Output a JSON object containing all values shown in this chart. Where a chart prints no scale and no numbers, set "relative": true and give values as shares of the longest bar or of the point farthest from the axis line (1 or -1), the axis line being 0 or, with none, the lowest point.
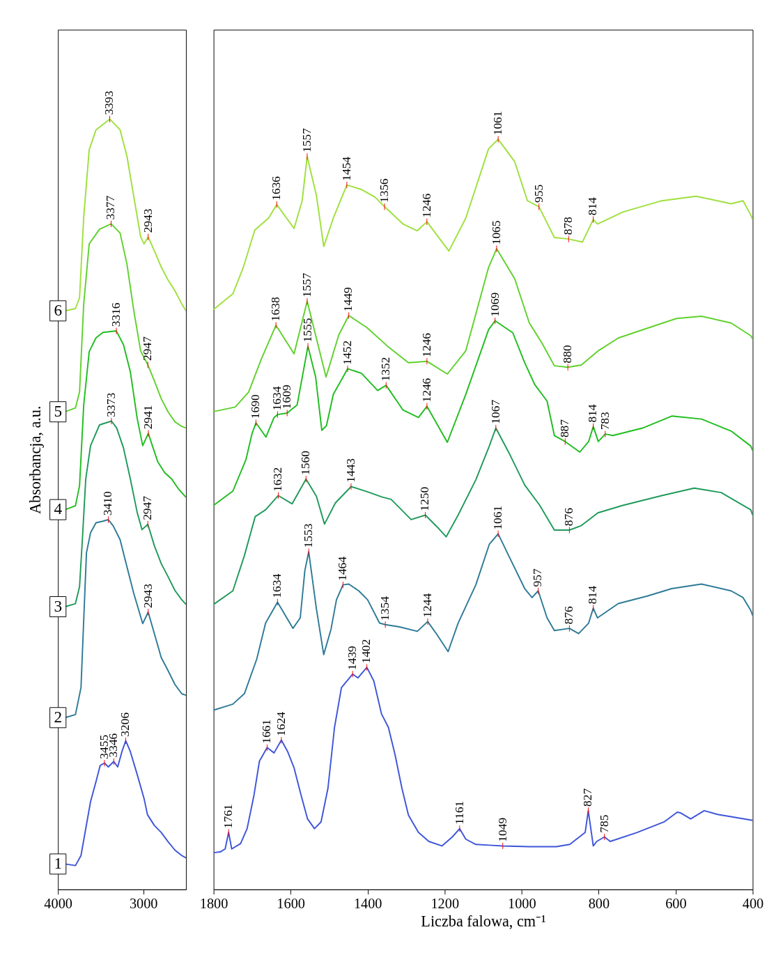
{
  "chart_data": [
    {
      "type": "line",
      "ylabel": "Absorbancja, a.u.",
      "relative": true,
      "xlim": [
        4000,
        2500
      ],
      "xticks": [
        4000,
        3000
      ],
      "series": [
        {
          "name": "1",
          "color": "#3d55d9",
          "x": [
            3915,
            3795,
            3730,
            3674,
            3618,
            3554,
            3505,
            3455,
            3410,
            3346,
            3300,
            3250,
            3206,
            3152,
            3071,
            2991,
            2951,
            2870,
            2790,
            2710,
            2629,
            2549,
            2500
          ],
          "values": [
            0.033,
            0.031,
            0.044,
            0.079,
            0.114,
            0.14,
            0.161,
            0.164,
            0.159,
            0.166,
            0.159,
            0.179,
            0.193,
            0.179,
            0.149,
            0.118,
            0.097,
            0.083,
            0.074,
            0.062,
            0.051,
            0.044,
            0.041
          ]
        },
        {
          "name": "2",
          "color": "#2d7a97",
          "x": [
            3915,
            3795,
            3730,
            3698,
            3666,
            3618,
            3554,
            3473,
            3410,
            3353,
            3272,
            3192,
            3111,
            3007,
            2943,
            2870,
            2790,
            2710,
            2629,
            2549,
            2500
          ],
          "values": [
            0.223,
            0.227,
            0.262,
            0.35,
            0.437,
            0.463,
            0.476,
            0.478,
            0.48,
            0.472,
            0.454,
            0.419,
            0.384,
            0.345,
            0.36,
            0.332,
            0.301,
            0.284,
            0.266,
            0.254,
            0.252
          ]
        },
        {
          "name": "3",
          "color": "#1f9a5a",
          "x": [
            3915,
            3795,
            3747,
            3714,
            3674,
            3618,
            3513,
            3373,
            3312,
            3232,
            3152,
            3071,
            3015,
            2947,
            2870,
            2790,
            2710,
            2629,
            2549,
            2500
          ],
          "values": [
            0.367,
            0.371,
            0.393,
            0.454,
            0.533,
            0.576,
            0.603,
            0.608,
            0.599,
            0.573,
            0.533,
            0.489,
            0.467,
            0.474,
            0.446,
            0.423,
            0.406,
            0.388,
            0.376,
            0.37
          ]
        },
        {
          "name": "4",
          "color": "#1fbd1f",
          "x": [
            3915,
            3795,
            3747,
            3698,
            3634,
            3554,
            3473,
            3316,
            3232,
            3152,
            3071,
            3007,
            2941,
            2894,
            2830,
            2750,
            2669,
            2589,
            2500
          ],
          "values": [
            0.493,
            0.498,
            0.524,
            0.629,
            0.698,
            0.716,
            0.723,
            0.725,
            0.707,
            0.672,
            0.611,
            0.576,
            0.592,
            0.576,
            0.555,
            0.541,
            0.533,
            0.52,
            0.509
          ]
        },
        {
          "name": "5",
          "color": "#5fd12c",
          "x": [
            3915,
            3795,
            3747,
            3698,
            3634,
            3513,
            3377,
            3272,
            3192,
            3111,
            3031,
            2947,
            2870,
            2790,
            2710,
            2629,
            2549,
            2500
          ],
          "values": [
            0.62,
            0.625,
            0.646,
            0.76,
            0.838,
            0.857,
            0.864,
            0.852,
            0.812,
            0.751,
            0.699,
            0.681,
            0.66,
            0.637,
            0.62,
            0.607,
            0.601,
            0.599
          ]
        },
        {
          "name": "6",
          "color": "#9ee03c",
          "x": [
            3915,
            3795,
            3747,
            3698,
            3634,
            3554,
            3393,
            3272,
            3192,
            3111,
            3031,
            2991,
            2943,
            2870,
            2790,
            2710,
            2629,
            2549,
            2500
          ],
          "values": [
            0.751,
            0.754,
            0.768,
            0.873,
            0.96,
            0.986,
            1.0,
            0.986,
            0.952,
            0.899,
            0.847,
            0.838,
            0.847,
            0.829,
            0.808,
            0.791,
            0.777,
            0.76,
            0.751
          ]
        }
      ],
      "annotations": [
        {
          "text": "3455",
          "x": 3455,
          "y": 0.164
        },
        {
          "text": "3346",
          "x": 3346,
          "y": 0.166
        },
        {
          "text": "3206",
          "x": 3206,
          "y": 0.193
        },
        {
          "text": "3410",
          "x": 3410,
          "y": 0.48
        },
        {
          "text": "2943",
          "x": 2943,
          "y": 0.36
        },
        {
          "text": "3373",
          "x": 3373,
          "y": 0.608
        },
        {
          "text": "2947",
          "x": 2947,
          "y": 0.474
        },
        {
          "text": "3316",
          "x": 3316,
          "y": 0.725
        },
        {
          "text": "2941",
          "x": 2941,
          "y": 0.592
        },
        {
          "text": "3377",
          "x": 3377,
          "y": 0.864
        },
        {
          "text": "2947",
          "x": 2947,
          "y": 0.681
        },
        {
          "text": "3393",
          "x": 3393,
          "y": 1.0
        },
        {
          "text": "2943",
          "x": 2943,
          "y": 0.847
        }
      ]
    },
    {
      "type": "line",
      "relative": true,
      "xlabel": "Liczba falowa, cm⁻¹",
      "xlim": [
        1800,
        400
      ],
      "xticks": [
        1800,
        1600,
        1400,
        1200,
        1000,
        800,
        600,
        400
      ],
      "series": [
        {
          "color": "#3d55d9",
          "x": [
            1800,
            1783,
            1770,
            1761,
            1753,
            1730,
            1713,
            1695,
            1681,
            1661,
            1643,
            1624,
            1608,
            1591,
            1573,
            1556,
            1538,
            1521,
            1503,
            1486,
            1468,
            1439,
            1425,
            1402,
            1384,
            1364,
            1346,
            1329,
            1311,
            1294,
            1268,
            1241,
            1207,
            1180,
            1161,
            1145,
            1119,
            1084,
            1049,
            980,
            910,
            875,
            835,
            827,
            814,
            805,
            785,
            770,
            700,
            630,
            596,
            587,
            561,
            526,
            491,
            456,
            400
          ],
          "values": [
            0.049,
            0.05,
            0.054,
            0.076,
            0.054,
            0.061,
            0.081,
            0.126,
            0.171,
            0.189,
            0.182,
            0.199,
            0.184,
            0.162,
            0.126,
            0.094,
            0.081,
            0.09,
            0.135,
            0.216,
            0.269,
            0.287,
            0.282,
            0.296,
            0.278,
            0.234,
            0.216,
            0.18,
            0.135,
            0.099,
            0.076,
            0.064,
            0.058,
            0.07,
            0.081,
            0.067,
            0.06,
            0.059,
            0.058,
            0.057,
            0.057,
            0.06,
            0.076,
            0.105,
            0.058,
            0.064,
            0.07,
            0.064,
            0.076,
            0.09,
            0.103,
            0.102,
            0.094,
            0.105,
            0.1,
            0.097,
            0.092
          ]
        },
        {
          "color": "#2d7a97",
          "x": [
            1800,
            1750,
            1720,
            1688,
            1665,
            1634,
            1594,
            1575,
            1563,
            1553,
            1533,
            1514,
            1495,
            1481,
            1464,
            1449,
            1423,
            1400,
            1369,
            1354,
            1317,
            1271,
            1244,
            1219,
            1191,
            1165,
            1119,
            1084,
            1061,
            1030,
            992,
            973,
            957,
            934,
            915,
            876,
            852,
            826,
            814,
            803,
            749,
            674,
            610,
            533,
            456,
            425,
            405,
            400
          ],
          "values": [
            0.239,
            0.247,
            0.261,
            0.307,
            0.355,
            0.383,
            0.348,
            0.362,
            0.425,
            0.45,
            0.374,
            0.313,
            0.347,
            0.386,
            0.406,
            0.407,
            0.398,
            0.386,
            0.355,
            0.353,
            0.35,
            0.344,
            0.357,
            0.339,
            0.317,
            0.355,
            0.406,
            0.46,
            0.474,
            0.441,
            0.401,
            0.389,
            0.398,
            0.362,
            0.345,
            0.348,
            0.341,
            0.355,
            0.375,
            0.362,
            0.381,
            0.391,
            0.401,
            0.407,
            0.398,
            0.389,
            0.372,
            0.365
          ]
        },
        {
          "color": "#1f9a5a",
          "x": [
            1800,
            1750,
            1720,
            1692,
            1665,
            1632,
            1596,
            1560,
            1533,
            1512,
            1484,
            1443,
            1400,
            1362,
            1339,
            1287,
            1250,
            1219,
            1196,
            1165,
            1119,
            1084,
            1067,
            1030,
            992,
            953,
            915,
            876,
            845,
            802,
            737,
            636,
            552,
            482,
            405,
            400
          ],
          "values": [
            0.38,
            0.398,
            0.445,
            0.497,
            0.506,
            0.525,
            0.514,
            0.547,
            0.524,
            0.487,
            0.515,
            0.537,
            0.53,
            0.523,
            0.52,
            0.493,
            0.499,
            0.483,
            0.47,
            0.499,
            0.546,
            0.591,
            0.615,
            0.579,
            0.539,
            0.512,
            0.479,
            0.479,
            0.485,
            0.502,
            0.512,
            0.525,
            0.535,
            0.529,
            0.506,
            0.499
          ]
        },
        {
          "color": "#1fbd1f",
          "x": [
            1800,
            1750,
            1716,
            1700,
            1690,
            1664,
            1643,
            1634,
            1609,
            1583,
            1555,
            1535,
            1519,
            1507,
            1489,
            1452,
            1416,
            1374,
            1352,
            1308,
            1268,
            1246,
            1193,
            1145,
            1086,
            1069,
            1023,
            992,
            966,
            934,
            915,
            887,
            849,
            826,
            814,
            801,
            783,
            763,
            686,
            610,
            533,
            456,
            405,
            400
          ],
          "values": [
            0.512,
            0.531,
            0.573,
            0.608,
            0.622,
            0.603,
            0.629,
            0.633,
            0.635,
            0.646,
            0.724,
            0.683,
            0.612,
            0.618,
            0.66,
            0.694,
            0.688,
            0.665,
            0.672,
            0.639,
            0.629,
            0.644,
            0.596,
            0.66,
            0.746,
            0.758,
            0.742,
            0.702,
            0.673,
            0.651,
            0.605,
            0.597,
            0.583,
            0.597,
            0.617,
            0.597,
            0.607,
            0.605,
            0.615,
            0.631,
            0.627,
            0.611,
            0.591,
            0.585
          ]
        },
        {
          "color": "#5fd12c",
          "x": [
            1800,
            1744,
            1709,
            1676,
            1638,
            1591,
            1557,
            1508,
            1475,
            1449,
            1402,
            1348,
            1294,
            1246,
            1193,
            1145,
            1086,
            1065,
            1018,
            980,
            947,
            915,
            880,
            845,
            801,
            749,
            674,
            598,
            533,
            456,
            405,
            400
          ],
          "values": [
            0.637,
            0.643,
            0.663,
            0.707,
            0.752,
            0.714,
            0.784,
            0.683,
            0.739,
            0.765,
            0.749,
            0.724,
            0.702,
            0.704,
            0.687,
            0.718,
            0.829,
            0.854,
            0.814,
            0.755,
            0.728,
            0.698,
            0.696,
            0.699,
            0.718,
            0.735,
            0.748,
            0.761,
            0.764,
            0.755,
            0.738,
            0.734
          ]
        },
        {
          "color": "#9ee03c",
          "x": [
            1800,
            1750,
            1723,
            1693,
            1657,
            1636,
            1591,
            1570,
            1557,
            1533,
            1514,
            1489,
            1454,
            1416,
            1381,
            1356,
            1308,
            1271,
            1246,
            1189,
            1145,
            1086,
            1061,
            1018,
            985,
            955,
            915,
            878,
            842,
            814,
            803,
            737,
            636,
            547,
            456,
            425,
            405,
            400
          ],
          "values": [
            0.773,
            0.794,
            0.829,
            0.879,
            0.895,
            0.913,
            0.881,
            0.918,
            0.977,
            0.925,
            0.857,
            0.895,
            0.939,
            0.933,
            0.923,
            0.91,
            0.887,
            0.878,
            0.89,
            0.851,
            0.895,
            0.987,
            1.0,
            0.97,
            0.918,
            0.91,
            0.869,
            0.867,
            0.863,
            0.893,
            0.887,
            0.903,
            0.918,
            0.924,
            0.914,
            0.918,
            0.899,
            0.893
          ]
        }
      ],
      "annotations": [
        {
          "text": "1761",
          "x": 1761,
          "y": 0.076
        },
        {
          "text": "1661",
          "x": 1661,
          "y": 0.189
        },
        {
          "text": "1624",
          "x": 1624,
          "y": 0.199
        },
        {
          "text": "1439",
          "x": 1439,
          "y": 0.287
        },
        {
          "text": "1402",
          "x": 1402,
          "y": 0.296
        },
        {
          "text": "1161",
          "x": 1161,
          "y": 0.081
        },
        {
          "text": "1049",
          "x": 1049,
          "y": 0.058
        },
        {
          "text": "827",
          "x": 827,
          "y": 0.105
        },
        {
          "text": "785",
          "x": 785,
          "y": 0.07
        },
        {
          "text": "1634",
          "x": 1634,
          "y": 0.383
        },
        {
          "text": "1553",
          "x": 1553,
          "y": 0.45
        },
        {
          "text": "1464",
          "x": 1464,
          "y": 0.406
        },
        {
          "text": "1354",
          "x": 1354,
          "y": 0.353
        },
        {
          "text": "1244",
          "x": 1244,
          "y": 0.357
        },
        {
          "text": "1061",
          "x": 1061,
          "y": 0.474
        },
        {
          "text": "957",
          "x": 957,
          "y": 0.398
        },
        {
          "text": "876",
          "x": 876,
          "y": 0.348
        },
        {
          "text": "814",
          "x": 814,
          "y": 0.375
        },
        {
          "text": "1632",
          "x": 1632,
          "y": 0.525
        },
        {
          "text": "1560",
          "x": 1560,
          "y": 0.547
        },
        {
          "text": "1443",
          "x": 1443,
          "y": 0.537
        },
        {
          "text": "1250",
          "x": 1250,
          "y": 0.499
        },
        {
          "text": "1067",
          "x": 1067,
          "y": 0.615
        },
        {
          "text": "876",
          "x": 876,
          "y": 0.479
        },
        {
          "text": "1690",
          "x": 1690,
          "y": 0.622
        },
        {
          "text": "1634",
          "x": 1634,
          "y": 0.633
        },
        {
          "text": "1609",
          "x": 1609,
          "y": 0.635
        },
        {
          "text": "1555",
          "x": 1555,
          "y": 0.724
        },
        {
          "text": "1452",
          "x": 1452,
          "y": 0.694
        },
        {
          "text": "1352",
          "x": 1352,
          "y": 0.672
        },
        {
          "text": "1246",
          "x": 1246,
          "y": 0.644
        },
        {
          "text": "1069",
          "x": 1069,
          "y": 0.758
        },
        {
          "text": "887",
          "x": 887,
          "y": 0.597
        },
        {
          "text": "814",
          "x": 814,
          "y": 0.617
        },
        {
          "text": "783",
          "x": 783,
          "y": 0.607
        },
        {
          "text": "1638",
          "x": 1638,
          "y": 0.752
        },
        {
          "text": "1557",
          "x": 1557,
          "y": 0.784
        },
        {
          "text": "1449",
          "x": 1449,
          "y": 0.765
        },
        {
          "text": "1246",
          "x": 1246,
          "y": 0.704
        },
        {
          "text": "1065",
          "x": 1065,
          "y": 0.854
        },
        {
          "text": "880",
          "x": 880,
          "y": 0.696
        },
        {
          "text": "1636",
          "x": 1636,
          "y": 0.913
        },
        {
          "text": "1557",
          "x": 1557,
          "y": 0.977
        },
        {
          "text": "1454",
          "x": 1454,
          "y": 0.939
        },
        {
          "text": "1356",
          "x": 1356,
          "y": 0.91
        },
        {
          "text": "1246",
          "x": 1246,
          "y": 0.89
        },
        {
          "text": "1061",
          "x": 1061,
          "y": 1.0
        },
        {
          "text": "955",
          "x": 955,
          "y": 0.91
        },
        {
          "text": "878",
          "x": 878,
          "y": 0.867
        },
        {
          "text": "814",
          "x": 814,
          "y": 0.893
        }
      ]
    }
  ]
}
